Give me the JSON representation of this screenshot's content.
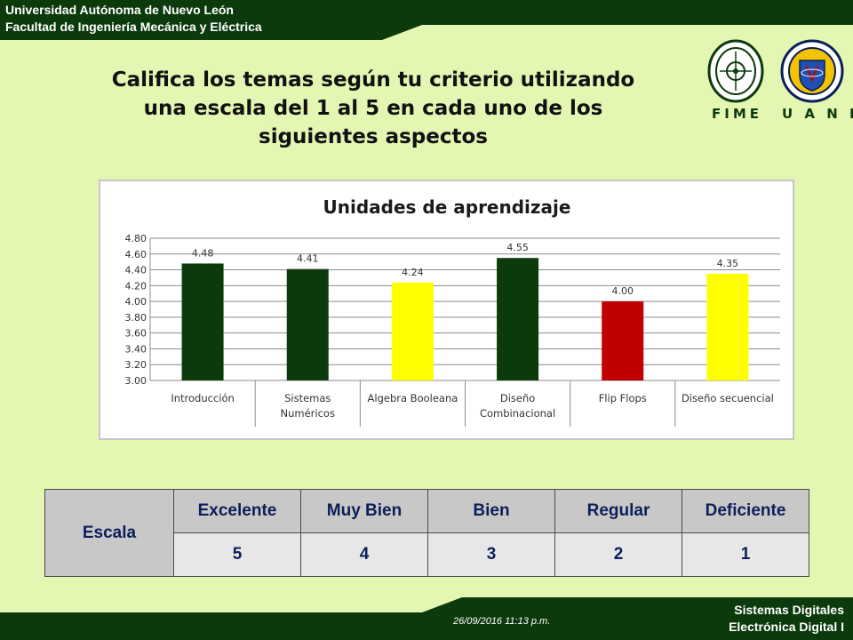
{
  "header": {
    "line1": "Universidad Autónoma de Nuevo León",
    "line2": "Facultad de Ingeniería Mecánica y Eléctrica",
    "band_color": "#0d3a0d"
  },
  "logos": {
    "fime": "FIME",
    "uanl": "U A N L"
  },
  "title": {
    "line1": "Califica los temas según tu criterio utilizando",
    "line2": "una escala del 1 al 5 en cada uno de los",
    "line3": "siguientes aspectos"
  },
  "chart_data": {
    "type": "bar",
    "title": "Unidades de aprendizaje",
    "categories": [
      [
        "Introducción"
      ],
      [
        "Sistemas",
        "Numéricos"
      ],
      [
        "Algebra Booleana"
      ],
      [
        "Diseño",
        "Combinacional"
      ],
      [
        "Flip Flops"
      ],
      [
        "Diseño secuencial"
      ]
    ],
    "values": [
      4.48,
      4.41,
      4.24,
      4.55,
      4.0,
      4.35
    ],
    "value_labels": [
      "4.48",
      "4.41",
      "4.24",
      "4.55",
      "4.00",
      "4.35"
    ],
    "bar_colors": [
      "#0d3a0d",
      "#0d3a0d",
      "#ffff00",
      "#0d3a0d",
      "#c00000",
      "#ffff00"
    ],
    "ylim": [
      3.0,
      4.8
    ],
    "yticks": [
      "3.00",
      "3.20",
      "3.40",
      "3.60",
      "3.80",
      "4.00",
      "4.20",
      "4.40",
      "4.60",
      "4.80"
    ],
    "grid": true,
    "xlabel": "",
    "ylabel": ""
  },
  "scale_table": {
    "row_label": "Escala",
    "headers": [
      "Excelente",
      "Muy Bien",
      "Bien",
      "Regular",
      "Deficiente"
    ],
    "values": [
      "5",
      "4",
      "3",
      "2",
      "1"
    ]
  },
  "footer": {
    "date": "26/09/2016  11:13 p.m.",
    "course_line1": "Sistemas Digitales",
    "course_line2": "Electrónica Digital I"
  }
}
